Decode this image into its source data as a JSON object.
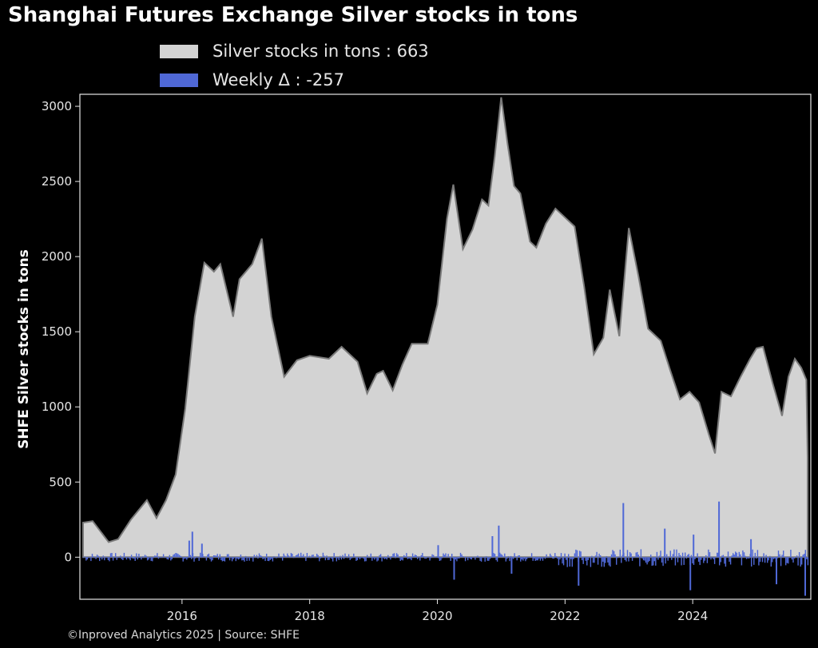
{
  "title": "Shanghai Futures Exchange Silver stocks in tons",
  "legend": [
    {
      "label": "Silver stocks in tons : 663",
      "color": "#d3d3d3"
    },
    {
      "label": "Weekly Δ : -257",
      "color": "#4f68d6"
    }
  ],
  "ylabel": "SHFE Silver stocks in tons",
  "footer": "©Inproved Analytics 2025 | Source: SHFE",
  "colors": {
    "background": "#000000",
    "area": "#d3d3d3",
    "area_edge": "#7a7a7a",
    "bars": "#4f68d6",
    "axis": "#e6e6e6"
  },
  "chart_data": {
    "type": "area",
    "title": "Shanghai Futures Exchange Silver stocks in tons",
    "ylabel": "SHFE Silver stocks in tons",
    "xlabel": "",
    "xlim": [
      2014.4,
      2025.85
    ],
    "ylim": [
      -280,
      3080
    ],
    "xticks": [
      2016,
      2018,
      2020,
      2022,
      2024
    ],
    "yticks": [
      0,
      500,
      1000,
      1500,
      2000,
      2500,
      3000
    ],
    "grid": false,
    "legend_position": "top-left",
    "series": [
      {
        "name": "Silver stocks in tons",
        "kind": "area",
        "x": [
          2014.45,
          2014.6,
          2014.85,
          2015.0,
          2015.2,
          2015.45,
          2015.6,
          2015.75,
          2015.9,
          2016.05,
          2016.2,
          2016.35,
          2016.5,
          2016.6,
          2016.8,
          2016.9,
          2017.0,
          2017.1,
          2017.25,
          2017.4,
          2017.6,
          2017.8,
          2018.0,
          2018.3,
          2018.5,
          2018.75,
          2018.9,
          2019.05,
          2019.15,
          2019.3,
          2019.45,
          2019.6,
          2019.85,
          2020.0,
          2020.15,
          2020.25,
          2020.4,
          2020.55,
          2020.7,
          2020.8,
          2020.9,
          2021.0,
          2021.1,
          2021.2,
          2021.3,
          2021.45,
          2021.55,
          2021.7,
          2021.85,
          2022.0,
          2022.15,
          2022.3,
          2022.45,
          2022.6,
          2022.7,
          2022.85,
          2023.0,
          2023.15,
          2023.3,
          2023.5,
          2023.65,
          2023.8,
          2023.95,
          2024.1,
          2024.25,
          2024.35,
          2024.45,
          2024.6,
          2024.75,
          2024.9,
          2025.0,
          2025.1,
          2025.25,
          2025.4,
          2025.5,
          2025.6,
          2025.7,
          2025.78,
          2025.8
        ],
        "values": [
          230,
          240,
          100,
          120,
          250,
          380,
          260,
          380,
          550,
          990,
          1600,
          1960,
          1900,
          1950,
          1600,
          1850,
          1900,
          1950,
          2120,
          1600,
          1200,
          1310,
          1340,
          1320,
          1400,
          1300,
          1090,
          1220,
          1240,
          1110,
          1280,
          1420,
          1420,
          1680,
          2250,
          2480,
          2050,
          2180,
          2380,
          2340,
          2670,
          3060,
          2750,
          2470,
          2420,
          2100,
          2060,
          2220,
          2320,
          2260,
          2200,
          1800,
          1350,
          1460,
          1780,
          1470,
          2190,
          1870,
          1520,
          1440,
          1240,
          1050,
          1100,
          1030,
          820,
          690,
          1100,
          1070,
          1200,
          1320,
          1390,
          1400,
          1160,
          940,
          1200,
          1320,
          1260,
          1180,
          663
        ]
      },
      {
        "name": "Weekly Δ",
        "kind": "bar",
        "spikes": [
          {
            "x": 2016.1,
            "value": 110
          },
          {
            "x": 2016.15,
            "value": 170
          },
          {
            "x": 2016.3,
            "value": 90
          },
          {
            "x": 2020.0,
            "value": 80
          },
          {
            "x": 2020.95,
            "value": 210
          },
          {
            "x": 2020.85,
            "value": 140
          },
          {
            "x": 2020.25,
            "value": -150
          },
          {
            "x": 2021.15,
            "value": -110
          },
          {
            "x": 2022.2,
            "value": -190
          },
          {
            "x": 2022.9,
            "value": 360
          },
          {
            "x": 2023.55,
            "value": 190
          },
          {
            "x": 2023.95,
            "value": -220
          },
          {
            "x": 2024.4,
            "value": 370
          },
          {
            "x": 2024.0,
            "value": 150
          },
          {
            "x": 2024.9,
            "value": 120
          },
          {
            "x": 2025.3,
            "value": -180
          },
          {
            "x": 2025.75,
            "value": -257
          }
        ]
      }
    ]
  }
}
